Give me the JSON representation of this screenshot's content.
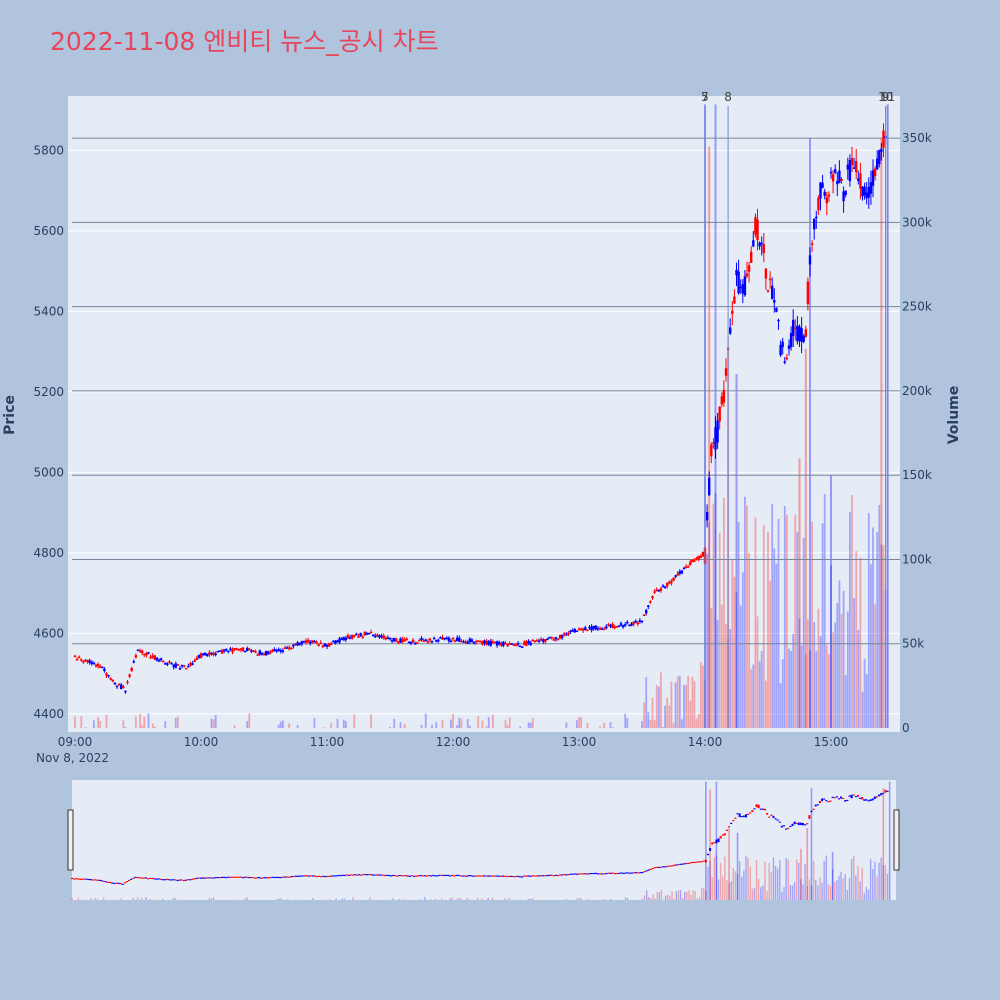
{
  "title": "2022-11-08 엔비티 뉴스_공시 차트",
  "colors": {
    "background": "#b0c4de",
    "plot_bg": "#e5ecf6",
    "title": "#e8455a",
    "up": "#ff0000",
    "down": "#0000ff",
    "axis_text": "#2a3f5f"
  },
  "chart_data": [
    {
      "type": "candlestick",
      "subtype": "candlestick with volume overlay",
      "title": "2022-11-08 엔비티 뉴스_공시 차트",
      "ylabel": "Price",
      "y2label": "Volume",
      "date_label": "Nov 8, 2022",
      "x_ticks": [
        "09:00",
        "10:00",
        "11:00",
        "12:00",
        "13:00",
        "14:00",
        "15:00"
      ],
      "y_ticks": [
        "4400",
        "4600",
        "4800",
        "5000",
        "5200",
        "5400",
        "5600",
        "5800"
      ],
      "y2_ticks": [
        "0",
        "50k",
        "100k",
        "150k",
        "200k",
        "250k",
        "300k",
        "350k"
      ],
      "ylim": [
        4365,
        5935
      ],
      "y2lim": [
        0,
        375000
      ],
      "x_range": [
        "09:00",
        "15:30"
      ],
      "grid": true,
      "price_path": [
        [
          "09:00",
          4540
        ],
        [
          "09:06",
          4530
        ],
        [
          "09:12",
          4520
        ],
        [
          "09:18",
          4480
        ],
        [
          "09:24",
          4460
        ],
        [
          "09:30",
          4560
        ],
        [
          "09:36",
          4545
        ],
        [
          "09:42",
          4530
        ],
        [
          "09:48",
          4520
        ],
        [
          "09:54",
          4520
        ],
        [
          "10:00",
          4545
        ],
        [
          "10:10",
          4555
        ],
        [
          "10:20",
          4560
        ],
        [
          "10:30",
          4550
        ],
        [
          "10:40",
          4560
        ],
        [
          "10:50",
          4580
        ],
        [
          "11:00",
          4570
        ],
        [
          "11:10",
          4590
        ],
        [
          "11:20",
          4600
        ],
        [
          "11:30",
          4585
        ],
        [
          "11:40",
          4580
        ],
        [
          "11:50",
          4585
        ],
        [
          "12:00",
          4585
        ],
        [
          "12:10",
          4580
        ],
        [
          "12:20",
          4575
        ],
        [
          "12:30",
          4570
        ],
        [
          "12:40",
          4580
        ],
        [
          "12:50",
          4590
        ],
        [
          "13:00",
          4610
        ],
        [
          "13:10",
          4615
        ],
        [
          "13:20",
          4620
        ],
        [
          "13:30",
          4630
        ],
        [
          "13:36",
          4700
        ],
        [
          "13:42",
          4720
        ],
        [
          "13:48",
          4750
        ],
        [
          "13:54",
          4780
        ],
        [
          "14:00",
          4800
        ],
        [
          "14:03",
          5050
        ],
        [
          "14:06",
          5100
        ],
        [
          "14:09",
          5200
        ],
        [
          "14:12",
          5350
        ],
        [
          "14:15",
          5480
        ],
        [
          "14:18",
          5450
        ],
        [
          "14:21",
          5500
        ],
        [
          "14:24",
          5620
        ],
        [
          "14:27",
          5570
        ],
        [
          "14:30",
          5480
        ],
        [
          "14:33",
          5420
        ],
        [
          "14:36",
          5320
        ],
        [
          "14:39",
          5280
        ],
        [
          "14:42",
          5350
        ],
        [
          "14:45",
          5340
        ],
        [
          "14:48",
          5350
        ],
        [
          "14:50",
          5540
        ],
        [
          "14:52",
          5620
        ],
        [
          "14:55",
          5710
        ],
        [
          "14:58",
          5690
        ],
        [
          "15:02",
          5760
        ],
        [
          "15:06",
          5700
        ],
        [
          "15:10",
          5770
        ],
        [
          "15:14",
          5720
        ],
        [
          "15:18",
          5700
        ],
        [
          "15:22",
          5760
        ],
        [
          "15:26",
          5840
        ]
      ],
      "volume_spikes": [
        {
          "time": "14:00",
          "volume": 370000
        },
        {
          "time": "14:02",
          "volume": 345000
        },
        {
          "time": "14:05",
          "volume": 370000
        },
        {
          "time": "14:11",
          "volume": 225000
        },
        {
          "time": "14:15",
          "volume": 210000
        },
        {
          "time": "14:45",
          "volume": 160000
        },
        {
          "time": "14:50",
          "volume": 350000
        },
        {
          "time": "14:48",
          "volume": 225000
        },
        {
          "time": "15:00",
          "volume": 150000
        },
        {
          "time": "15:24",
          "volume": 350000
        },
        {
          "time": "15:27",
          "volume": 370000
        }
      ],
      "annotations": [
        {
          "time": "14:00",
          "label": "5"
        },
        {
          "time": "14:00",
          "label": "7"
        },
        {
          "time": "14:11",
          "label": "8"
        },
        {
          "time": "15:26",
          "label": "9"
        },
        {
          "time": "15:26",
          "label": "10"
        },
        {
          "time": "15:27",
          "label": "11"
        }
      ],
      "legend": "none"
    }
  ]
}
